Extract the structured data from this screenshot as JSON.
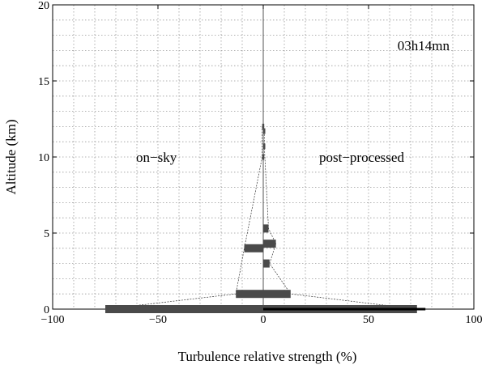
{
  "chart_data": {
    "type": "bar",
    "orientation": "horizontal",
    "xlabel": "Turbulence relative strength (%)",
    "ylabel": "Altitude (km)",
    "xlim": [
      -100,
      100
    ],
    "ylim": [
      0,
      20
    ],
    "xticks": [
      -100,
      -50,
      0,
      50,
      100
    ],
    "yticks": [
      0,
      5,
      10,
      15,
      20
    ],
    "grid": true,
    "annotations": {
      "time": "03h14mn",
      "left": "on−sky",
      "right": "post−processed"
    },
    "series": [
      {
        "color": "#4a4a4a",
        "points": [
          {
            "altitude": 0,
            "value": -75
          },
          {
            "altitude": 1,
            "value": -13
          },
          {
            "altitude": 4,
            "value": -9
          },
          {
            "altitude": 10,
            "value": -0.5
          },
          {
            "altitude": 12,
            "value": -0.5
          }
        ]
      },
      {
        "color": "#4a4a4a",
        "points": [
          {
            "altitude": 0,
            "value": 73
          },
          {
            "altitude": 1,
            "value": 13
          },
          {
            "altitude": 3,
            "value": 3
          },
          {
            "altitude": 4.3,
            "value": 6
          },
          {
            "altitude": 5.3,
            "value": 2.5
          },
          {
            "altitude": 10.7,
            "value": 0.5
          },
          {
            "altitude": 11.7,
            "value": 0.5
          }
        ]
      },
      {
        "color": "#000000",
        "points": [
          {
            "altitude": 0,
            "value": 77
          }
        ]
      }
    ]
  }
}
